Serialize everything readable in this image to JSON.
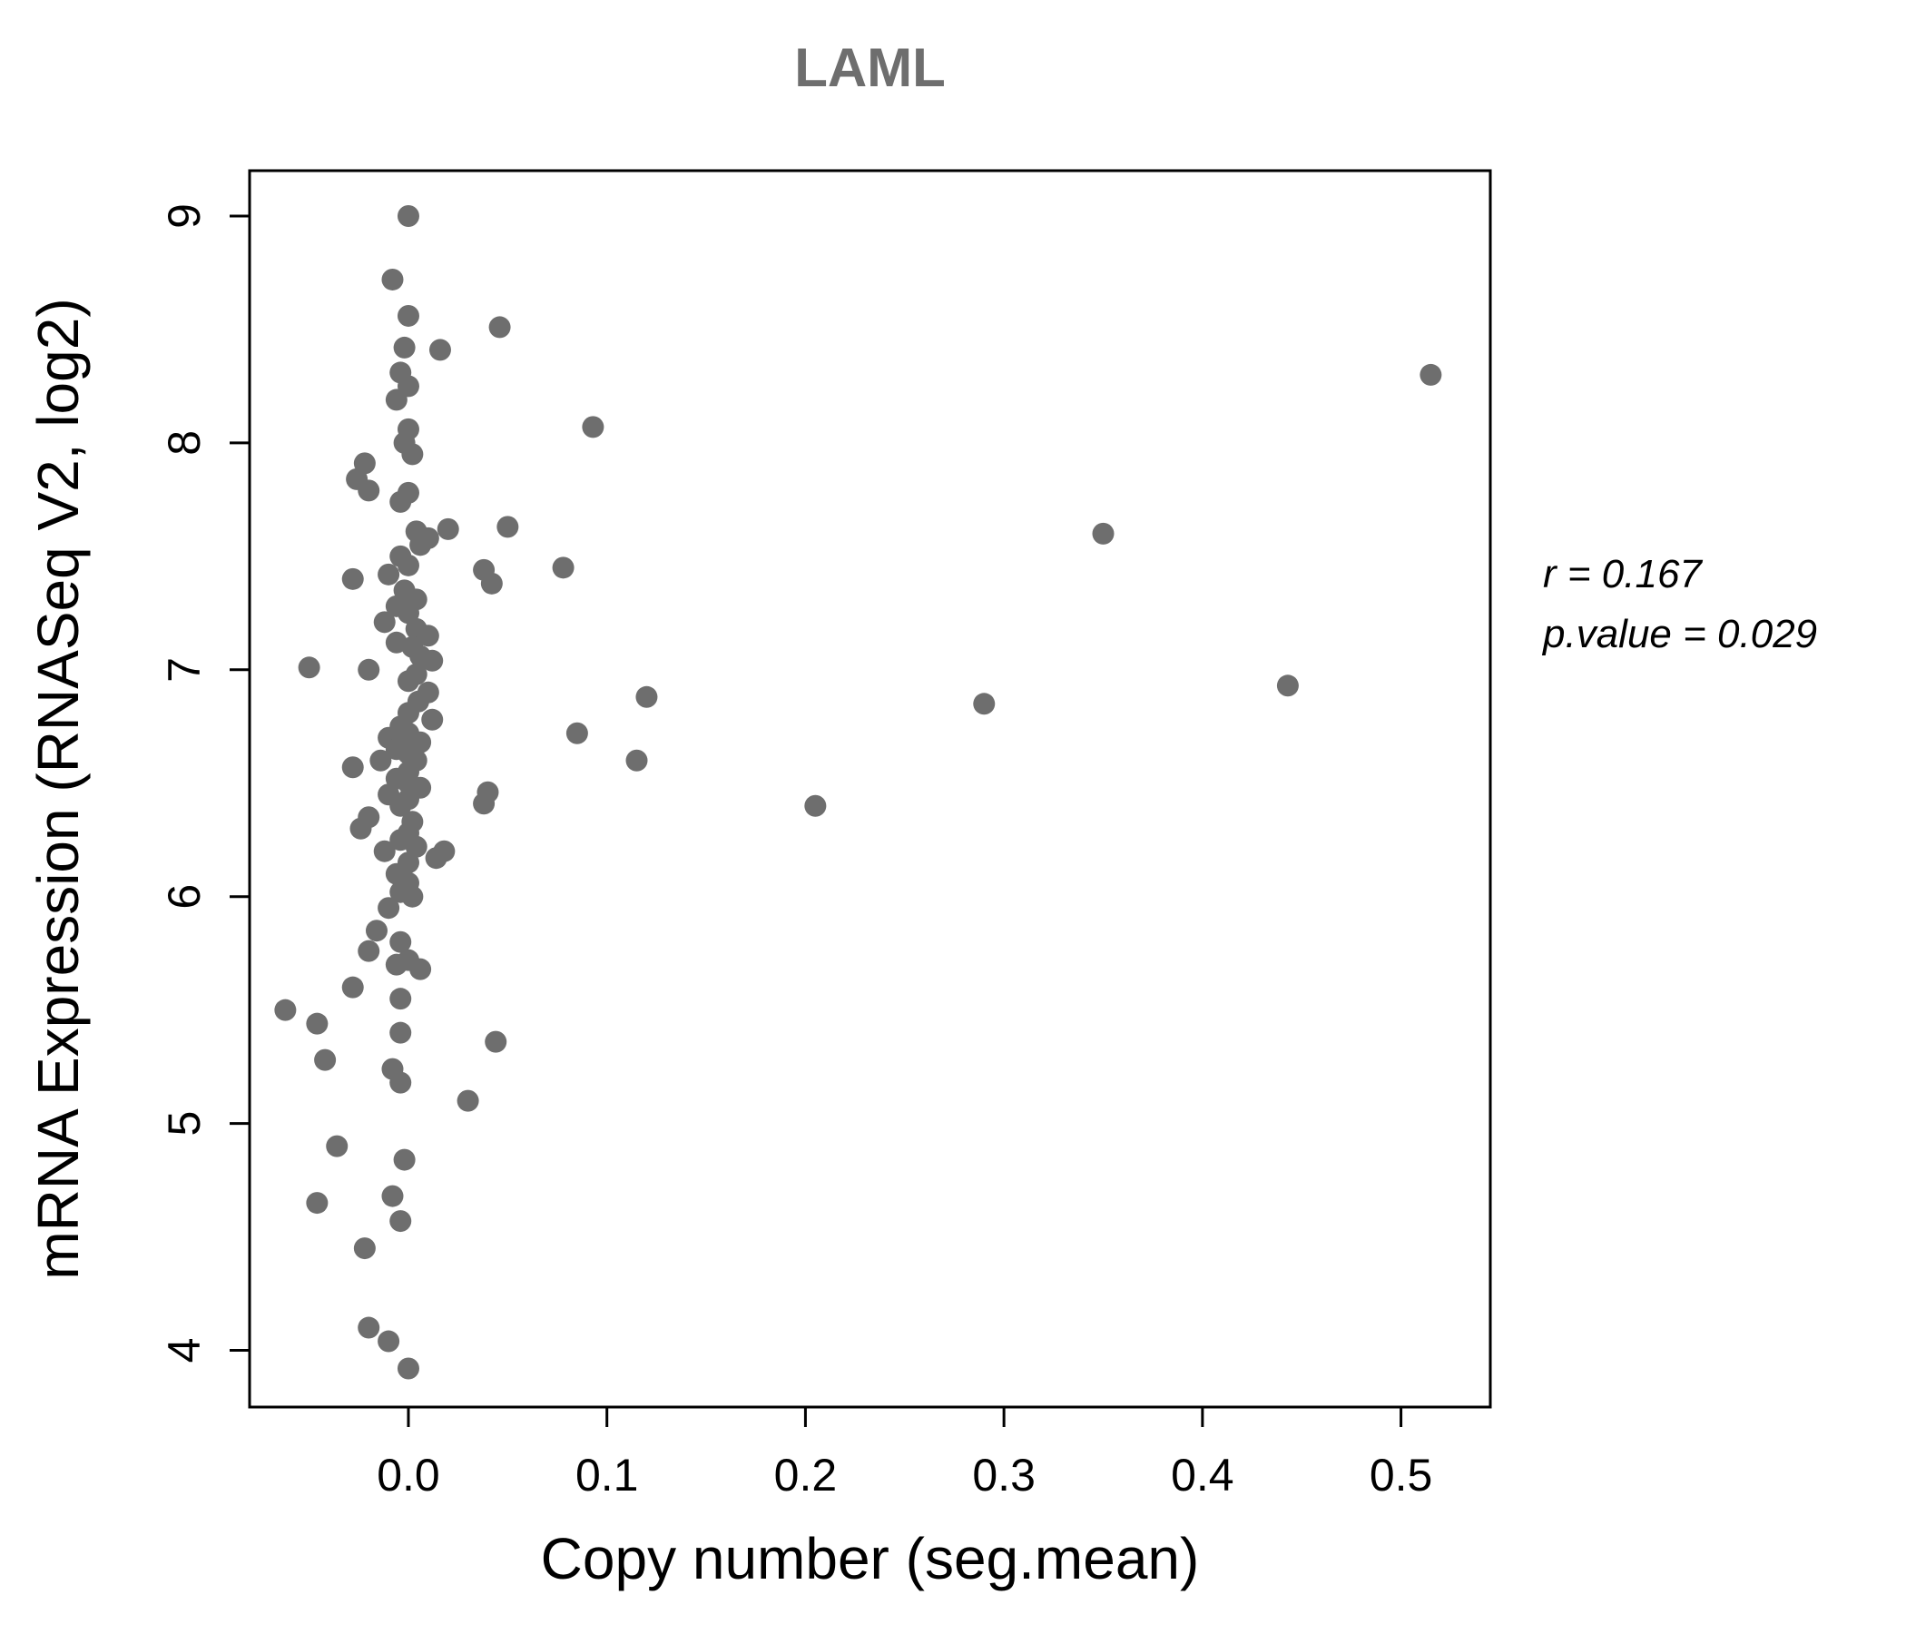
{
  "chart_data": {
    "type": "scatter",
    "title": "LAML",
    "xlabel": "Copy number (seg.mean)",
    "ylabel": "mRNA Expression (RNASeq V2, log2)",
    "x_ticks": [
      0.0,
      0.1,
      0.2,
      0.3,
      0.4,
      0.5
    ],
    "x_tick_labels": [
      "0.0",
      "0.1",
      "0.2",
      "0.3",
      "0.4",
      "0.5"
    ],
    "y_ticks": [
      4,
      5,
      6,
      7,
      8,
      9
    ],
    "y_tick_labels": [
      "4",
      "5",
      "6",
      "7",
      "8",
      "9"
    ],
    "xlim": [
      -0.08,
      0.545
    ],
    "ylim": [
      3.75,
      9.2
    ],
    "grid": false,
    "legend": "none",
    "point_color": "#6e6e6e",
    "annotation": {
      "line1": "r = 0.167",
      "line2": "p.value = 0.029",
      "r": 0.167,
      "p_value": 0.029
    },
    "points": [
      [
        0.515,
        8.3
      ],
      [
        0.35,
        7.6
      ],
      [
        0.443,
        6.93
      ],
      [
        0.29,
        6.85
      ],
      [
        0.205,
        6.4
      ],
      [
        0.12,
        6.88
      ],
      [
        0.115,
        6.6
      ],
      [
        0.093,
        8.07
      ],
      [
        0.085,
        6.72
      ],
      [
        0.078,
        7.45
      ],
      [
        0.046,
        8.51
      ],
      [
        0.05,
        7.63
      ],
      [
        0.038,
        7.44
      ],
      [
        0.042,
        7.38
      ],
      [
        0.04,
        6.46
      ],
      [
        0.038,
        6.41
      ],
      [
        0.044,
        5.36
      ],
      [
        0.03,
        5.1
      ],
      [
        0.016,
        8.41
      ],
      [
        0.02,
        7.62
      ],
      [
        0.018,
        6.2
      ],
      [
        0.0,
        9.0
      ],
      [
        -0.008,
        8.72
      ],
      [
        0.0,
        8.56
      ],
      [
        -0.002,
        8.42
      ],
      [
        -0.004,
        8.31
      ],
      [
        0.0,
        8.25
      ],
      [
        -0.006,
        8.19
      ],
      [
        0.0,
        8.06
      ],
      [
        -0.002,
        8.0
      ],
      [
        0.002,
        7.95
      ],
      [
        -0.022,
        7.91
      ],
      [
        -0.026,
        7.84
      ],
      [
        -0.02,
        7.79
      ],
      [
        0.0,
        7.78
      ],
      [
        -0.004,
        7.74
      ],
      [
        0.004,
        7.61
      ],
      [
        0.01,
        7.58
      ],
      [
        0.006,
        7.55
      ],
      [
        -0.004,
        7.5
      ],
      [
        0.0,
        7.46
      ],
      [
        -0.028,
        7.4
      ],
      [
        -0.01,
        7.42
      ],
      [
        -0.002,
        7.35
      ],
      [
        0.004,
        7.31
      ],
      [
        -0.006,
        7.28
      ],
      [
        0.0,
        7.25
      ],
      [
        -0.012,
        7.21
      ],
      [
        0.004,
        7.18
      ],
      [
        0.01,
        7.15
      ],
      [
        -0.006,
        7.12
      ],
      [
        0.002,
        7.1
      ],
      [
        0.006,
        7.06
      ],
      [
        0.012,
        7.04
      ],
      [
        -0.05,
        7.01
      ],
      [
        -0.02,
        7.0
      ],
      [
        0.004,
        6.98
      ],
      [
        0.0,
        6.95
      ],
      [
        0.01,
        6.9
      ],
      [
        0.005,
        6.86
      ],
      [
        0.0,
        6.81
      ],
      [
        0.012,
        6.78
      ],
      [
        -0.004,
        6.75
      ],
      [
        0.0,
        6.72
      ],
      [
        -0.01,
        6.7
      ],
      [
        0.006,
        6.68
      ],
      [
        -0.006,
        6.65
      ],
      [
        0.0,
        6.63
      ],
      [
        -0.014,
        6.6
      ],
      [
        0.004,
        6.6
      ],
      [
        -0.028,
        6.57
      ],
      [
        0.0,
        6.55
      ],
      [
        -0.006,
        6.52
      ],
      [
        0.0,
        6.5
      ],
      [
        0.006,
        6.48
      ],
      [
        -0.01,
        6.45
      ],
      [
        0.0,
        6.43
      ],
      [
        -0.004,
        6.4
      ],
      [
        -0.02,
        6.35
      ],
      [
        0.002,
        6.33
      ],
      [
        -0.024,
        6.3
      ],
      [
        0.0,
        6.28
      ],
      [
        -0.004,
        6.25
      ],
      [
        0.004,
        6.22
      ],
      [
        -0.012,
        6.2
      ],
      [
        0.014,
        6.17
      ],
      [
        0.0,
        6.15
      ],
      [
        -0.006,
        6.1
      ],
      [
        0.0,
        6.06
      ],
      [
        -0.004,
        6.02
      ],
      [
        0.002,
        6.0
      ],
      [
        -0.01,
        5.95
      ],
      [
        -0.016,
        5.85
      ],
      [
        -0.004,
        5.8
      ],
      [
        -0.02,
        5.76
      ],
      [
        0.0,
        5.72
      ],
      [
        -0.006,
        5.7
      ],
      [
        0.006,
        5.68
      ],
      [
        -0.028,
        5.6
      ],
      [
        -0.004,
        5.55
      ],
      [
        -0.062,
        5.5
      ],
      [
        -0.046,
        5.44
      ],
      [
        -0.004,
        5.4
      ],
      [
        -0.042,
        5.28
      ],
      [
        -0.008,
        5.24
      ],
      [
        -0.004,
        5.18
      ],
      [
        -0.036,
        4.9
      ],
      [
        -0.002,
        4.84
      ],
      [
        -0.008,
        4.68
      ],
      [
        -0.046,
        4.65
      ],
      [
        -0.004,
        4.57
      ],
      [
        -0.022,
        4.45
      ],
      [
        -0.02,
        4.1
      ],
      [
        -0.01,
        4.04
      ],
      [
        0.0,
        3.92
      ]
    ]
  }
}
